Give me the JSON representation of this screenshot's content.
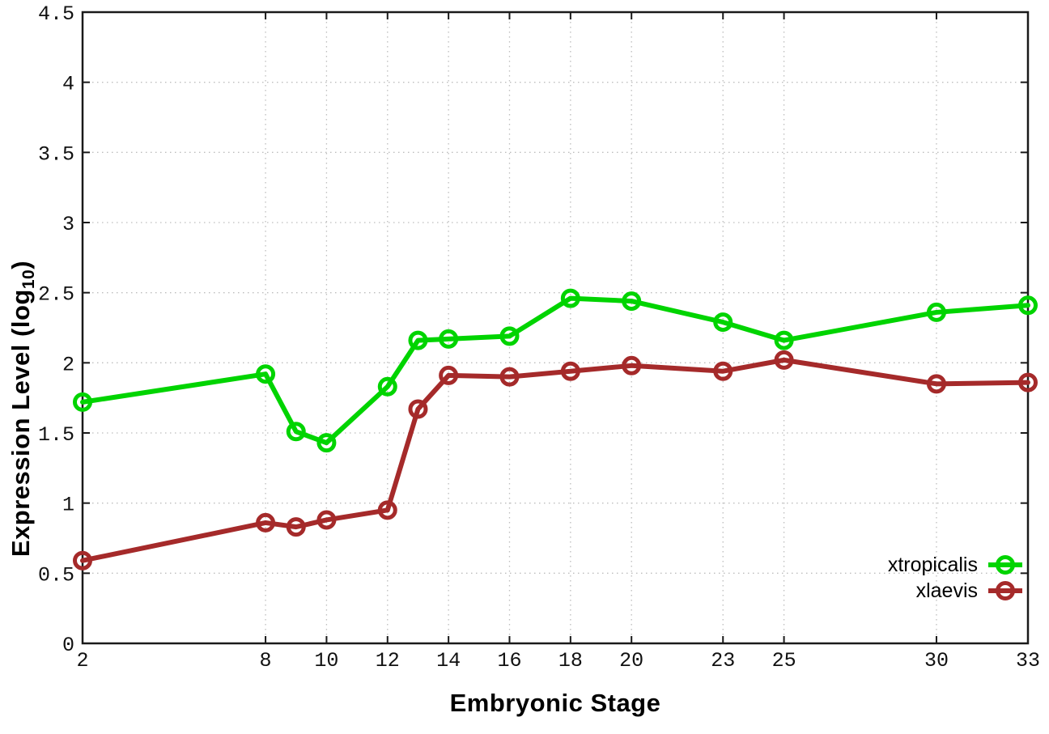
{
  "figure": {
    "background_color": "#ffffff",
    "border_color": "#1a1a1a",
    "grid_color": "#bdbdbd",
    "tick_label_color": "#111111"
  },
  "chart_data": {
    "type": "line",
    "title": "",
    "xlabel": "Embryonic Stage",
    "ylabel": "Expression Level (log10)",
    "ylabel_parts": {
      "prefix": "Expression Level (log",
      "subscript": "10",
      "suffix": ")"
    },
    "xlim": [
      2,
      33
    ],
    "ylim": [
      0,
      4.5
    ],
    "grid": true,
    "grid_style": "dotted",
    "legend_position": "bottom-right-inside",
    "x": [
      2,
      8,
      9,
      10,
      12,
      13,
      14,
      16,
      18,
      20,
      23,
      25,
      30,
      33
    ],
    "xticks": [
      2,
      8,
      10,
      12,
      14,
      16,
      18,
      20,
      23,
      25,
      30,
      33
    ],
    "xtick_labels": [
      "2",
      "8",
      "10",
      "12",
      "14",
      "16",
      "18",
      "20",
      "23",
      "25",
      "30",
      "33"
    ],
    "yticks": [
      0,
      0.5,
      1,
      1.5,
      2,
      2.5,
      3,
      3.5,
      4,
      4.5
    ],
    "ytick_labels": [
      "0",
      "0.5",
      "1",
      "1.5",
      "2",
      "2.5",
      "3",
      "3.5",
      "4",
      "4.5"
    ],
    "series": [
      {
        "name": "xtropicalis",
        "color": "#00d400",
        "marker": "open-circle",
        "values": [
          1.72,
          1.92,
          1.51,
          1.43,
          1.83,
          2.16,
          2.17,
          2.19,
          2.46,
          2.44,
          2.29,
          2.16,
          2.36,
          2.41
        ]
      },
      {
        "name": "xlaevis",
        "color": "#a52a2a",
        "marker": "open-circle",
        "values": [
          0.59,
          0.86,
          0.83,
          0.88,
          0.95,
          1.67,
          1.91,
          1.9,
          1.94,
          1.98,
          1.94,
          2.02,
          1.85,
          1.86
        ]
      }
    ]
  }
}
